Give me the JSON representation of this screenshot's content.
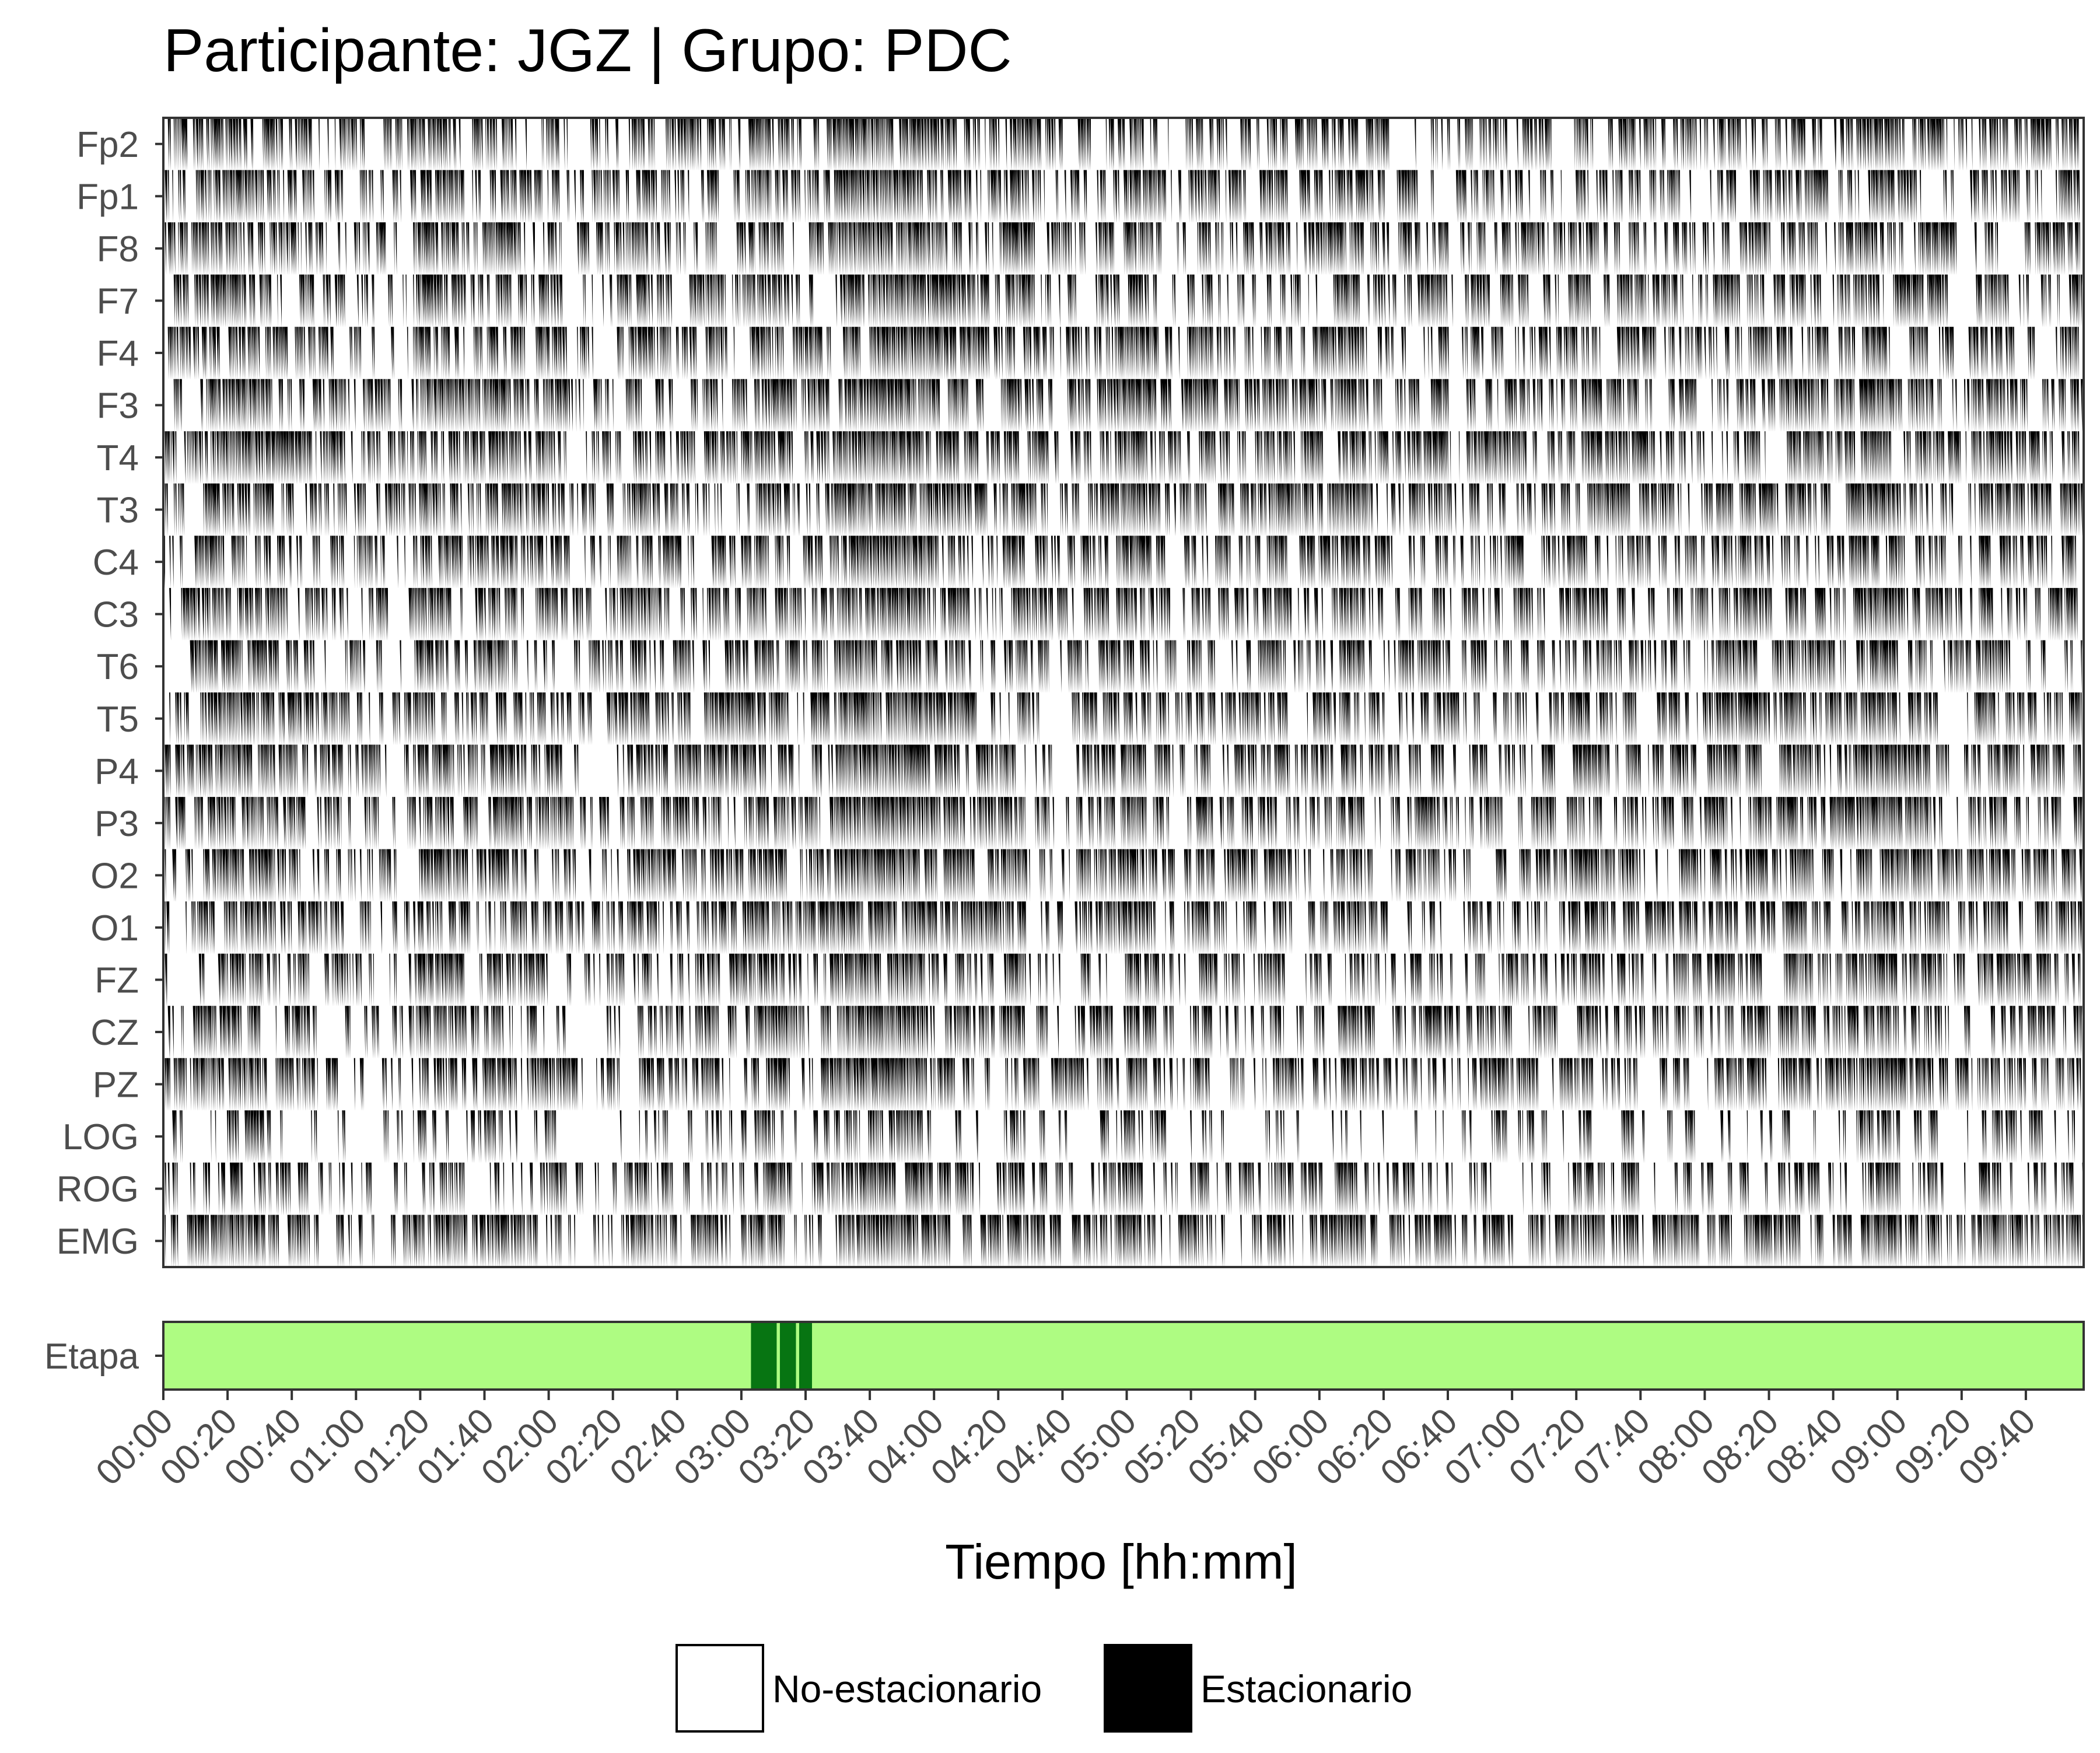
{
  "chart_data": {
    "type": "heatmap",
    "title": "Participante: JGZ | Grupo: PDC",
    "xlabel": "Tiempo [hh:mm]",
    "ylabel": "",
    "channels": [
      "Fp2",
      "Fp1",
      "F8",
      "F7",
      "F4",
      "F3",
      "T4",
      "T3",
      "C4",
      "C3",
      "T6",
      "T5",
      "P4",
      "P3",
      "O2",
      "O1",
      "FZ",
      "CZ",
      "PZ",
      "LOG",
      "ROG",
      "EMG"
    ],
    "x_ticks": [
      "00:00",
      "00:20",
      "00:40",
      "01:00",
      "01:20",
      "01:40",
      "02:00",
      "02:20",
      "02:40",
      "03:00",
      "03:20",
      "03:40",
      "04:00",
      "04:20",
      "04:40",
      "05:00",
      "05:20",
      "05:40",
      "06:00",
      "06:20",
      "06:40",
      "07:00",
      "07:20",
      "07:40",
      "08:00",
      "08:20",
      "08:40",
      "09:00",
      "09:20",
      "09:40"
    ],
    "x_range_minutes": [
      0,
      598
    ],
    "channel_stationary_fraction": [
      0.58,
      0.6,
      0.62,
      0.6,
      0.58,
      0.66,
      0.72,
      0.74,
      0.6,
      0.64,
      0.62,
      0.64,
      0.64,
      0.64,
      0.66,
      0.64,
      0.58,
      0.6,
      0.62,
      0.32,
      0.48,
      0.7
    ],
    "legend": {
      "position": "bottom",
      "items": [
        {
          "label": "No-estacionario",
          "color": "#ffffff"
        },
        {
          "label": "Estacionario",
          "color": "#000000"
        }
      ]
    },
    "stage_track": {
      "label": "Etapa",
      "base_color": "#aefc82",
      "segment_color": "#077512",
      "segments_minutes": [
        [
          183,
          191
        ],
        [
          192,
          197
        ],
        [
          198,
          202
        ]
      ]
    },
    "colors": {
      "stationary": "#000000",
      "non_stationary": "#ffffff",
      "panel_border": "#333333",
      "tick_text": "#4d4d4d"
    }
  }
}
